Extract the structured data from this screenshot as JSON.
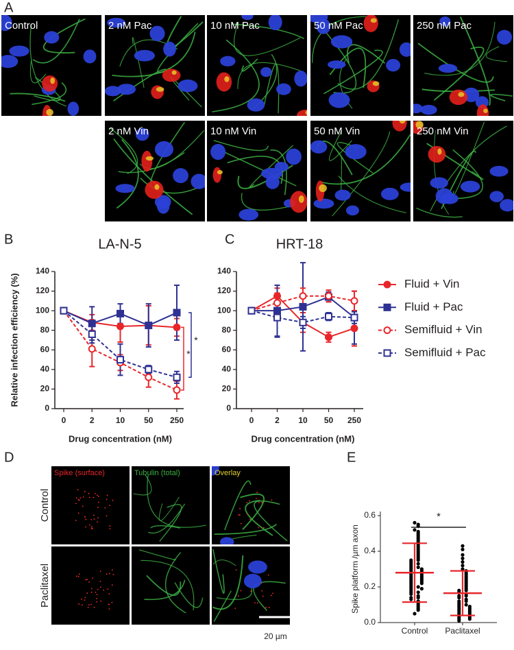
{
  "panel_a": {
    "letter": "A",
    "images": [
      "Control",
      "2 nM Pac",
      "10 nM Pac",
      "50 nM Pac",
      "250 nM Pac",
      "2 nM Vin",
      "10 nM Vin",
      "50 nM Vin",
      "250 nM Vin"
    ]
  },
  "chart_data": [
    {
      "panel": "B",
      "type": "line",
      "title": "LA-N-5",
      "y_label": "Relative infection efficiency (%)",
      "x_label": "Drug concentration (nM)",
      "categories": [
        "0",
        "2",
        "10",
        "50",
        "250"
      ],
      "ylim": [
        0,
        140
      ],
      "yticks": [
        0,
        20,
        40,
        60,
        80,
        100,
        120,
        140
      ],
      "series": [
        {
          "color": "#e8262a",
          "marker": "circle",
          "filled": true,
          "dashed": false,
          "values": [
            100,
            88,
            84,
            85,
            83
          ],
          "errors": [
            0,
            8,
            16,
            20,
            9
          ]
        },
        {
          "color": "#2e3192",
          "marker": "square",
          "filled": true,
          "dashed": false,
          "values": [
            100,
            87,
            97,
            85,
            98
          ],
          "errors": [
            0,
            17,
            10,
            22,
            28
          ]
        },
        {
          "color": "#e8262a",
          "marker": "circle",
          "filled": false,
          "dashed": true,
          "values": [
            100,
            61,
            47,
            32,
            19
          ],
          "errors": [
            0,
            18,
            8,
            10,
            9
          ]
        },
        {
          "color": "#2e3192",
          "marker": "square",
          "filled": false,
          "dashed": true,
          "values": [
            100,
            76,
            50,
            40,
            32
          ],
          "errors": [
            0,
            9,
            16,
            4,
            6
          ]
        }
      ],
      "annotations": [
        "*",
        "*"
      ]
    },
    {
      "panel": "C",
      "type": "line",
      "title": "HRT-18",
      "x_label": "Drug concentration (nM)",
      "categories": [
        "0",
        "2",
        "10",
        "50",
        "250"
      ],
      "ylim": [
        0,
        140
      ],
      "yticks": [
        0,
        20,
        40,
        60,
        80,
        100,
        120,
        140
      ],
      "legend": "right",
      "series": [
        {
          "name": "Fluid + Vin",
          "color": "#e8262a",
          "marker": "circle",
          "filled": true,
          "dashed": false,
          "values": [
            100,
            115,
            88,
            73,
            82
          ],
          "errors": [
            0,
            8,
            10,
            5,
            18
          ]
        },
        {
          "name": "Fluid + Pac",
          "color": "#2e3192",
          "marker": "square",
          "filled": true,
          "dashed": false,
          "values": [
            100,
            100,
            104,
            114,
            93
          ],
          "errors": [
            0,
            26,
            45,
            5,
            27
          ]
        },
        {
          "name": "Semifluid + Vin",
          "color": "#e8262a",
          "marker": "circle",
          "filled": false,
          "dashed": true,
          "values": [
            100,
            108,
            115,
            115,
            110
          ],
          "errors": [
            0,
            10,
            8,
            6,
            10
          ]
        },
        {
          "name": "Semifluid + Pac",
          "color": "#2e3192",
          "marker": "square",
          "filled": false,
          "dashed": true,
          "values": [
            100,
            93,
            88,
            94,
            93
          ],
          "errors": [
            0,
            20,
            6,
            4,
            6
          ]
        }
      ]
    },
    {
      "panel": "E",
      "type": "strip",
      "y_label": "Spike platform /µm axon",
      "categories": [
        "Control",
        "Paclitaxel"
      ],
      "ylim": [
        0,
        0.6
      ],
      "yticks": [
        {
          "value": 0,
          "label": "0.0"
        },
        0.2,
        0.4,
        0.6
      ],
      "summary_color": "#e8262a",
      "series": [
        {
          "color": "#000000",
          "mean": 0.28,
          "sd": 0.165,
          "values": [
            0.56,
            0.55,
            0.54,
            0.52,
            0.51,
            0.5,
            0.49,
            0.48,
            0.47,
            0.46,
            0.45,
            0.44,
            0.43,
            0.42,
            0.41,
            0.4,
            0.39,
            0.38,
            0.37,
            0.36,
            0.35,
            0.35,
            0.34,
            0.33,
            0.33,
            0.32,
            0.31,
            0.31,
            0.3,
            0.3,
            0.29,
            0.29,
            0.28,
            0.28,
            0.27,
            0.27,
            0.26,
            0.26,
            0.25,
            0.25,
            0.24,
            0.24,
            0.23,
            0.23,
            0.22,
            0.22,
            0.21,
            0.2,
            0.2,
            0.19,
            0.19,
            0.18,
            0.17,
            0.17,
            0.16,
            0.15,
            0.14,
            0.14,
            0.13,
            0.12,
            0.11,
            0.1,
            0.09,
            0.08,
            0.07,
            0.05
          ]
        },
        {
          "color": "#000000",
          "mean": 0.165,
          "sd": 0.125,
          "values": [
            0.43,
            0.41,
            0.38,
            0.36,
            0.34,
            0.32,
            0.3,
            0.29,
            0.28,
            0.27,
            0.26,
            0.25,
            0.24,
            0.23,
            0.22,
            0.21,
            0.2,
            0.19,
            0.18,
            0.18,
            0.17,
            0.16,
            0.15,
            0.15,
            0.14,
            0.13,
            0.12,
            0.12,
            0.11,
            0.1,
            0.1,
            0.09,
            0.09,
            0.08,
            0.08,
            0.07,
            0.07,
            0.06,
            0.06,
            0.05,
            0.05,
            0.04,
            0.04,
            0.03,
            0.03,
            0.02,
            0.02,
            0.01
          ]
        }
      ],
      "annotations": [
        "*"
      ]
    }
  ],
  "panel_d": {
    "letter": "D",
    "columns": [
      "Spike (surface)",
      "Tubulin (total)",
      "Overlay"
    ],
    "rows": [
      "Control",
      "Paclitaxel"
    ],
    "scale_bar": "20 µm"
  }
}
